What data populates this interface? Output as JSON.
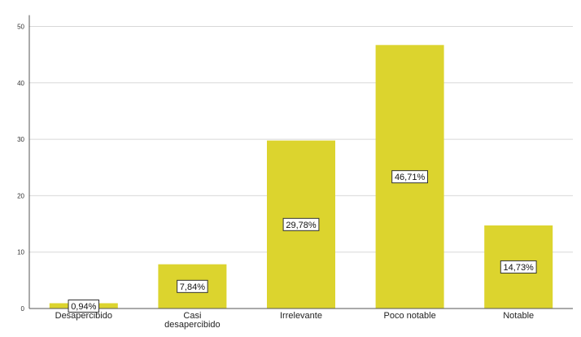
{
  "chart_data": {
    "type": "bar",
    "categories": [
      [
        "Desapercibido"
      ],
      [
        "Casi",
        "desapercibido"
      ],
      [
        "Irrelevante"
      ],
      [
        "Poco notable"
      ],
      [
        "Notable"
      ]
    ],
    "values": [
      0.94,
      7.84,
      29.78,
      46.71,
      14.73
    ],
    "data_labels": [
      "0,94%",
      "7,84%",
      "29,78%",
      "46,71%",
      "14,73%"
    ],
    "y_ticks": [
      0,
      10,
      20,
      30,
      40,
      50
    ],
    "ylim": [
      0,
      52
    ],
    "grid": true,
    "bar_color": "#dcd42e",
    "grid_color": "#d8d8d8",
    "axis_color": "#555555"
  }
}
